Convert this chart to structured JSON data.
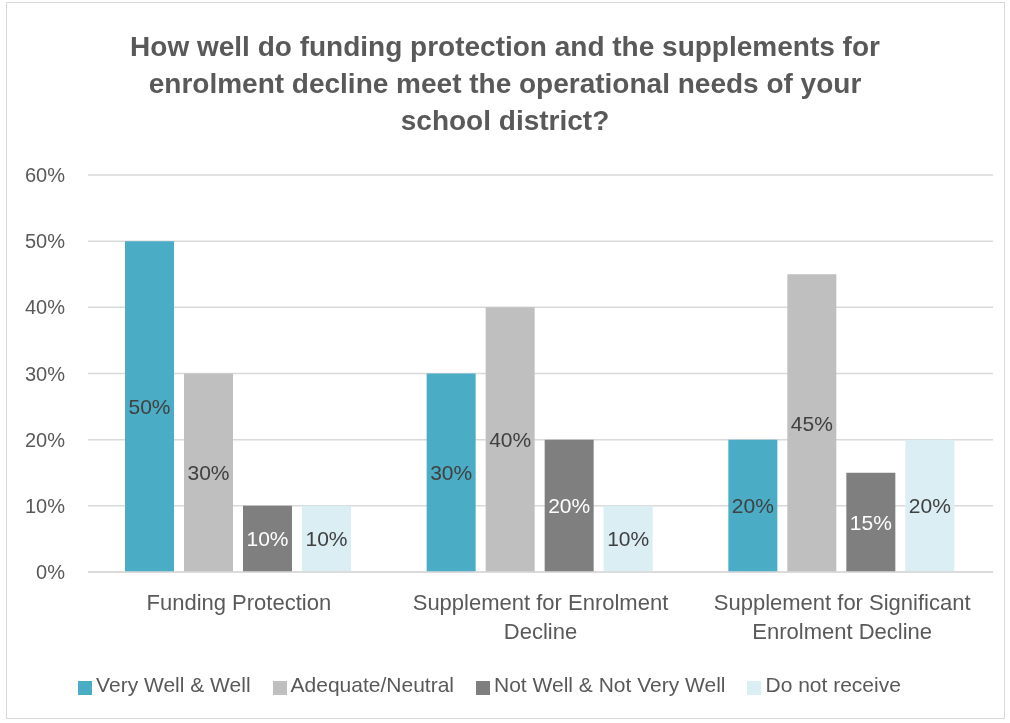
{
  "chart_data": {
    "type": "bar",
    "title": "How well do funding protection and the supplements for enrolment decline meet the operational needs of your school district?",
    "categories": [
      "Funding Protection",
      "Supplement for Enrolment Decline",
      "Supplement for Significant Enrolment Decline"
    ],
    "series": [
      {
        "name": "Very Well & Well",
        "color": "#4bacc6",
        "values": [
          50,
          30,
          20
        ],
        "value_labels": [
          "50%",
          "30%",
          "20%"
        ]
      },
      {
        "name": "Adequate/Neutral",
        "color": "#bfbfbf",
        "values": [
          30,
          40,
          45
        ],
        "value_labels": [
          "30%",
          "40%",
          "45%"
        ]
      },
      {
        "name": "Not Well & Not Very Well",
        "color": "#7f7f7f",
        "values": [
          10,
          20,
          15
        ],
        "value_labels": [
          "10%",
          "20%",
          "15%"
        ]
      },
      {
        "name": "Do not receive",
        "color": "#dbeef4",
        "values": [
          10,
          10,
          20
        ],
        "value_labels": [
          "10%",
          "10%",
          "20%"
        ]
      }
    ],
    "ylim": [
      0,
      60
    ],
    "yticks": [
      {
        "value": 0,
        "label": "0%"
      },
      {
        "value": 10,
        "label": "10%"
      },
      {
        "value": 20,
        "label": "20%"
      },
      {
        "value": 30,
        "label": "30%"
      },
      {
        "value": 40,
        "label": "40%"
      },
      {
        "value": 50,
        "label": "50%"
      },
      {
        "value": 60,
        "label": "60%"
      }
    ],
    "grid": "y",
    "legend": "bottom"
  }
}
